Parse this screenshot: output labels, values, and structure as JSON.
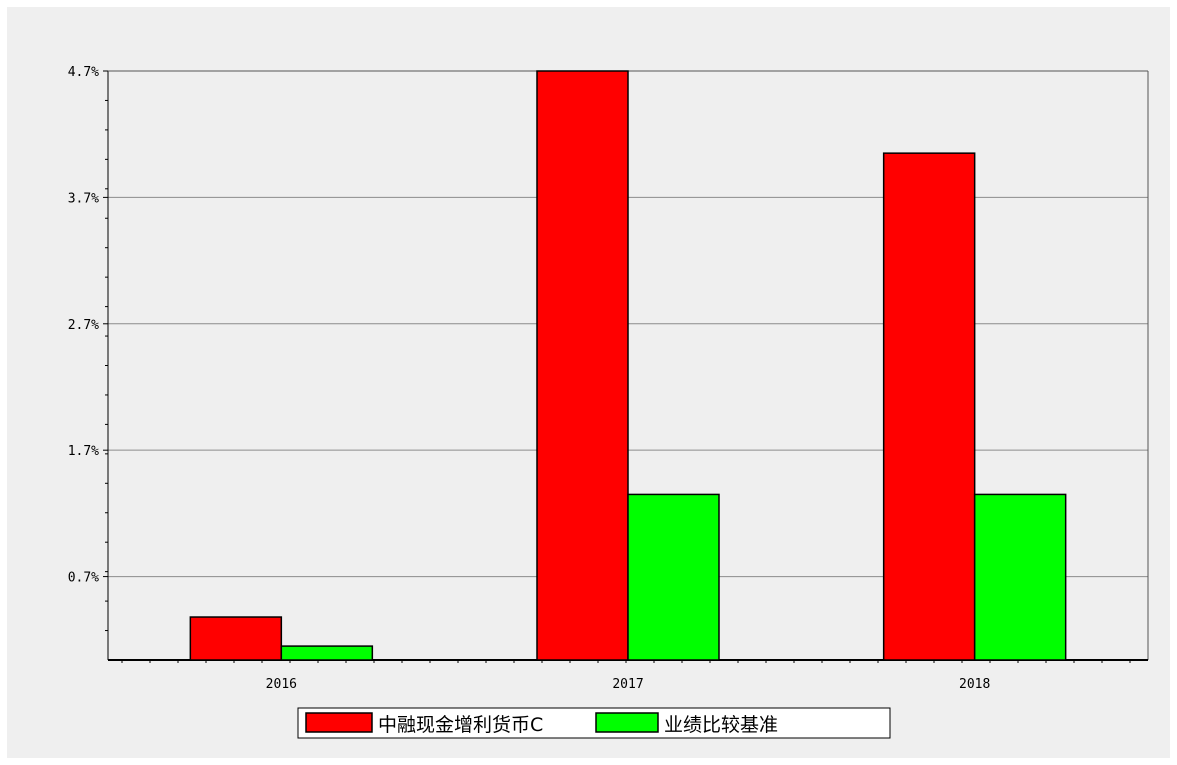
{
  "chart_data": {
    "type": "bar",
    "categories": [
      "2016",
      "2017",
      "2018"
    ],
    "series": [
      {
        "name": "中融现金增利货币C",
        "color": "#ff0000",
        "values": [
          0.38,
          4.7,
          4.05
        ]
      },
      {
        "name": "业绩比较基准",
        "color": "#00ff00",
        "values": [
          0.15,
          1.35,
          1.35
        ]
      }
    ],
    "y_ticks": [
      "4.7%",
      "3.7%",
      "2.7%",
      "1.7%",
      "0.7%"
    ],
    "y_tick_values": [
      4.7,
      3.7,
      2.7,
      1.7,
      0.7
    ],
    "ylim": [
      0.04,
      4.7
    ],
    "grid": true,
    "legend_position": "bottom-center"
  }
}
